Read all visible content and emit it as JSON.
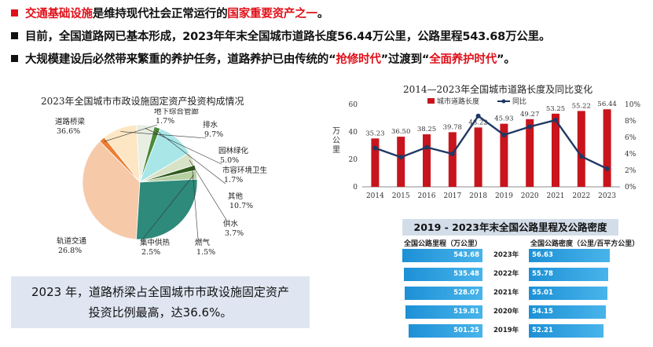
{
  "colors": {
    "accent_red": "#e0101a",
    "bar_red": "#c8141c",
    "line_navy": "#1f3864",
    "table_blue": "#1d90d6"
  },
  "bullets": [
    {
      "marker_color": "#e0101a",
      "parts": [
        {
          "text": "交通基础设施",
          "red": true
        },
        {
          "text": "是维持现代社会正常运行的",
          "red": false
        },
        {
          "text": "国家重要资产之一",
          "red": true
        },
        {
          "text": "。",
          "red": false
        }
      ]
    },
    {
      "marker_color": "#111111",
      "parts": [
        {
          "text": "目前，全国道路网已基本形成，2023年年末全国城市道路长度56.44万公里，公路里程543.68万公里。",
          "red": false
        }
      ]
    },
    {
      "marker_color": "#111111",
      "parts": [
        {
          "text": "大规模建设后必然带来繁重的养护任务，道路养护已由传统的“",
          "red": false
        },
        {
          "text": "抢修时代",
          "red": true
        },
        {
          "text": "”过渡到“",
          "red": false
        },
        {
          "text": "全面养护时代",
          "red": true
        },
        {
          "text": "”。",
          "red": false
        }
      ]
    }
  ],
  "callout": {
    "line1": "2023 年，道路桥梁占全国城市市政设施固定资产",
    "line2": "投资比例最高，达36.6%。"
  },
  "chart_data": [
    {
      "type": "pie",
      "title": "2023年全国城市市政设施固定资产投资构成情况",
      "slices": [
        {
          "name": "道路桥梁",
          "value": 36.6,
          "label": "36.6%",
          "color": "#f6c9a9"
        },
        {
          "name": "地下综合管廊",
          "value": 1.7,
          "label": "1.7%",
          "color": "#ed7d31"
        },
        {
          "name": "排水",
          "value": 9.7,
          "label": "9.7%",
          "color": "#fce6c4"
        },
        {
          "name": "园林绿化",
          "value": 5.0,
          "label": "5.0%",
          "color": "#e8eee2"
        },
        {
          "name": "市容环境卫生",
          "value": 1.7,
          "label": "1.7%",
          "color": "#4a8a3a"
        },
        {
          "name": "其他",
          "value": 10.7,
          "label": "10.7%",
          "color": "#a8e6e8"
        },
        {
          "name": "供水",
          "value": 3.7,
          "label": "3.7%",
          "color": "#d8e2c6"
        },
        {
          "name": "燃气",
          "value": 1.5,
          "label": "1.5%",
          "color": "#2e5a1e"
        },
        {
          "name": "集中供热",
          "value": 2.5,
          "label": "2.5%",
          "color": "#b5cfa0"
        },
        {
          "name": "轨道交通",
          "value": 26.8,
          "label": "26.8%",
          "color": "#2e8a7a"
        }
      ]
    },
    {
      "type": "bar+line",
      "title": "2014—2023年全国城市道路长度及同比变化",
      "categories": [
        "2014",
        "2015",
        "2016",
        "2017",
        "2018",
        "2019",
        "2020",
        "2021",
        "2022",
        "2023"
      ],
      "series": [
        {
          "name": "城市道路长度",
          "kind": "bar",
          "axis": "left",
          "values": [
            35.23,
            36.5,
            38.25,
            39.78,
            43.22,
            45.93,
            49.27,
            53.25,
            55.22,
            56.44
          ],
          "labels": [
            "35.23",
            "36.50",
            "38.25",
            "39.78",
            "43.22",
            "45.93",
            "49.27",
            "53.25",
            "55.22",
            "56.44"
          ]
        },
        {
          "name": "同比",
          "kind": "line",
          "axis": "right",
          "values": [
            4.7,
            3.6,
            4.8,
            4.0,
            8.6,
            6.3,
            7.3,
            8.1,
            3.7,
            2.2
          ]
        }
      ],
      "ylabel_left": "万公里",
      "ylim_left": [
        0,
        60
      ],
      "yticks_left": [
        "0",
        "20",
        "40",
        "60"
      ],
      "ylim_right": [
        0,
        10
      ],
      "yticks_right": [
        "0%",
        "2%",
        "4%",
        "6%",
        "8%",
        "10%"
      ],
      "legend_position": "top"
    },
    {
      "type": "table",
      "title": "2019 - 2023年末全国公路里程及公路密度",
      "columns": [
        "全国公路里程（万公里）",
        "",
        "全国公路密度（公里/百平方公里）"
      ],
      "rows": [
        {
          "mileage": 543.68,
          "year": "2023年",
          "density": 56.63
        },
        {
          "mileage": 535.48,
          "year": "2022年",
          "density": 55.78
        },
        {
          "mileage": 528.07,
          "year": "2021年",
          "density": 55.01
        },
        {
          "mileage": 519.81,
          "year": "2020年",
          "density": 54.15
        },
        {
          "mileage": 501.25,
          "year": "2019年",
          "density": 52.21
        }
      ],
      "mileage_labels": [
        "543.68",
        "535.48",
        "528.07",
        "519.81",
        "501.25"
      ],
      "density_labels": [
        "56.63",
        "55.78",
        "55.01",
        "54.15",
        "52.21"
      ]
    }
  ]
}
